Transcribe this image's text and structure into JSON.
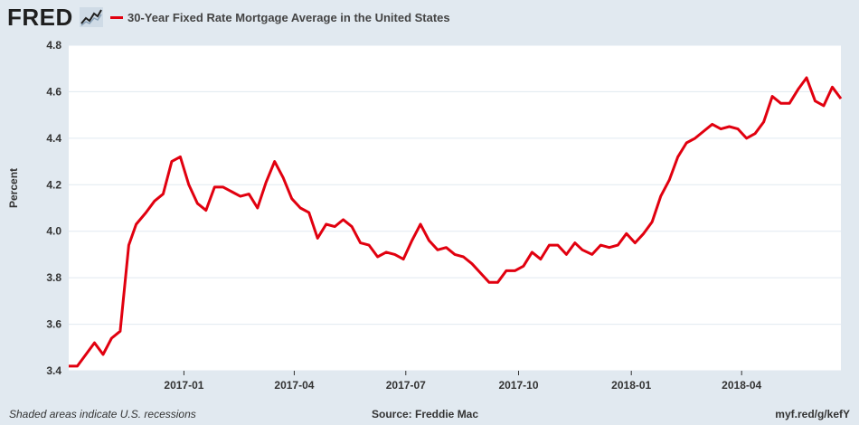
{
  "header": {
    "logo_text": "FRED",
    "logo_icon": "chart-trend-icon",
    "series_title": "30-Year Fixed Rate Mortgage Average in the United States"
  },
  "footer": {
    "left": "Shaded areas indicate U.S. recessions",
    "center": "Source: Freddie Mac",
    "right": "myf.red/g/kefY"
  },
  "colors": {
    "series": "#e1000f",
    "background": "#e1e9f0",
    "plot_bg": "#ffffff",
    "grid": "#e1e9f0"
  },
  "chart_data": {
    "type": "line",
    "title": "30-Year Fixed Rate Mortgage Average in the United States",
    "xlabel": "",
    "ylabel": "Percent",
    "ylim": [
      3.4,
      4.8
    ],
    "yticks": [
      3.4,
      3.6,
      3.8,
      4.0,
      4.2,
      4.4,
      4.6,
      4.8
    ],
    "xlim": [
      "2016-09-29",
      "2018-06-21"
    ],
    "xticks": [
      {
        "date": "2017-01-01",
        "label": "2017-01"
      },
      {
        "date": "2017-04-01",
        "label": "2017-04"
      },
      {
        "date": "2017-07-01",
        "label": "2017-07"
      },
      {
        "date": "2017-10-01",
        "label": "2017-10"
      },
      {
        "date": "2018-01-01",
        "label": "2018-01"
      },
      {
        "date": "2018-04-01",
        "label": "2018-04"
      }
    ],
    "grid": "horizontal",
    "legend": "top-left",
    "series": [
      {
        "name": "30-Year Fixed Rate Mortgage Average in the United States",
        "x": [
          "2016-09-29",
          "2016-10-06",
          "2016-10-13",
          "2016-10-20",
          "2016-10-27",
          "2016-11-03",
          "2016-11-10",
          "2016-11-17",
          "2016-11-23",
          "2016-12-01",
          "2016-12-08",
          "2016-12-15",
          "2016-12-22",
          "2016-12-29",
          "2017-01-05",
          "2017-01-12",
          "2017-01-19",
          "2017-01-26",
          "2017-02-02",
          "2017-02-09",
          "2017-02-16",
          "2017-02-23",
          "2017-03-02",
          "2017-03-09",
          "2017-03-16",
          "2017-03-23",
          "2017-03-30",
          "2017-04-06",
          "2017-04-13",
          "2017-04-20",
          "2017-04-27",
          "2017-05-04",
          "2017-05-11",
          "2017-05-18",
          "2017-05-25",
          "2017-06-01",
          "2017-06-08",
          "2017-06-15",
          "2017-06-22",
          "2017-06-29",
          "2017-07-06",
          "2017-07-13",
          "2017-07-20",
          "2017-07-27",
          "2017-08-03",
          "2017-08-10",
          "2017-08-17",
          "2017-08-24",
          "2017-08-31",
          "2017-09-07",
          "2017-09-14",
          "2017-09-21",
          "2017-09-28",
          "2017-10-05",
          "2017-10-12",
          "2017-10-19",
          "2017-10-26",
          "2017-11-02",
          "2017-11-09",
          "2017-11-16",
          "2017-11-22",
          "2017-11-30",
          "2017-12-07",
          "2017-12-14",
          "2017-12-21",
          "2017-12-28",
          "2018-01-04",
          "2018-01-11",
          "2018-01-18",
          "2018-01-25",
          "2018-02-01",
          "2018-02-08",
          "2018-02-15",
          "2018-02-22",
          "2018-03-01",
          "2018-03-08",
          "2018-03-15",
          "2018-03-22",
          "2018-03-29",
          "2018-04-05",
          "2018-04-12",
          "2018-04-19",
          "2018-04-26",
          "2018-05-03",
          "2018-05-10",
          "2018-05-17",
          "2018-05-24",
          "2018-05-31",
          "2018-06-07",
          "2018-06-14",
          "2018-06-21"
        ],
        "y": [
          3.42,
          3.42,
          3.47,
          3.52,
          3.47,
          3.54,
          3.57,
          3.94,
          4.03,
          4.08,
          4.13,
          4.16,
          4.3,
          4.32,
          4.2,
          4.12,
          4.09,
          4.19,
          4.19,
          4.17,
          4.15,
          4.16,
          4.1,
          4.21,
          4.3,
          4.23,
          4.14,
          4.1,
          4.08,
          3.97,
          4.03,
          4.02,
          4.05,
          4.02,
          3.95,
          3.94,
          3.89,
          3.91,
          3.9,
          3.88,
          3.96,
          4.03,
          3.96,
          3.92,
          3.93,
          3.9,
          3.89,
          3.86,
          3.82,
          3.78,
          3.78,
          3.83,
          3.83,
          3.85,
          3.91,
          3.88,
          3.94,
          3.94,
          3.9,
          3.95,
          3.92,
          3.9,
          3.94,
          3.93,
          3.94,
          3.99,
          3.95,
          3.99,
          4.04,
          4.15,
          4.22,
          4.32,
          4.38,
          4.4,
          4.43,
          4.46,
          4.44,
          4.45,
          4.44,
          4.4,
          4.42,
          4.47,
          4.58,
          4.55,
          4.55,
          4.61,
          4.66,
          4.56,
          4.54,
          4.62,
          4.57
        ]
      }
    ]
  }
}
